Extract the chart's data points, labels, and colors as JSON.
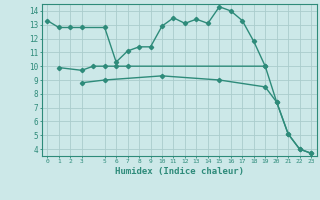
{
  "curve1_x": [
    0,
    1,
    2,
    3,
    5,
    6,
    7,
    8,
    9,
    10,
    11,
    12,
    13,
    14,
    15,
    16,
    17,
    18,
    19,
    20,
    21,
    22,
    23
  ],
  "curve1_y": [
    13.3,
    12.8,
    12.8,
    12.8,
    12.8,
    10.3,
    11.1,
    11.4,
    11.4,
    12.9,
    13.5,
    13.1,
    13.4,
    13.1,
    14.3,
    14.0,
    13.3,
    11.8,
    10.0,
    7.4,
    5.1,
    4.0,
    3.7
  ],
  "curve2_x": [
    1,
    3,
    4,
    5,
    6,
    7,
    19
  ],
  "curve2_y": [
    9.9,
    9.7,
    10.0,
    10.0,
    10.0,
    10.0,
    10.0
  ],
  "curve3_x": [
    3,
    5,
    10,
    15,
    19,
    20,
    21,
    22,
    23
  ],
  "curve3_y": [
    8.8,
    9.0,
    9.3,
    9.0,
    8.5,
    7.4,
    5.1,
    4.0,
    3.7
  ],
  "color": "#2e8b7a",
  "bg_color": "#cce8e8",
  "grid_color": "#aacccc",
  "xlabel": "Humidex (Indice chaleur)",
  "xlim": [
    -0.5,
    23.5
  ],
  "ylim": [
    3.5,
    14.5
  ],
  "yticks": [
    4,
    5,
    6,
    7,
    8,
    9,
    10,
    11,
    12,
    13,
    14
  ],
  "xticks": [
    0,
    1,
    2,
    3,
    5,
    6,
    7,
    8,
    9,
    10,
    11,
    12,
    13,
    14,
    15,
    16,
    17,
    18,
    19,
    20,
    21,
    22,
    23
  ],
  "marker": "D",
  "markersize": 2.2,
  "linewidth": 1.0
}
